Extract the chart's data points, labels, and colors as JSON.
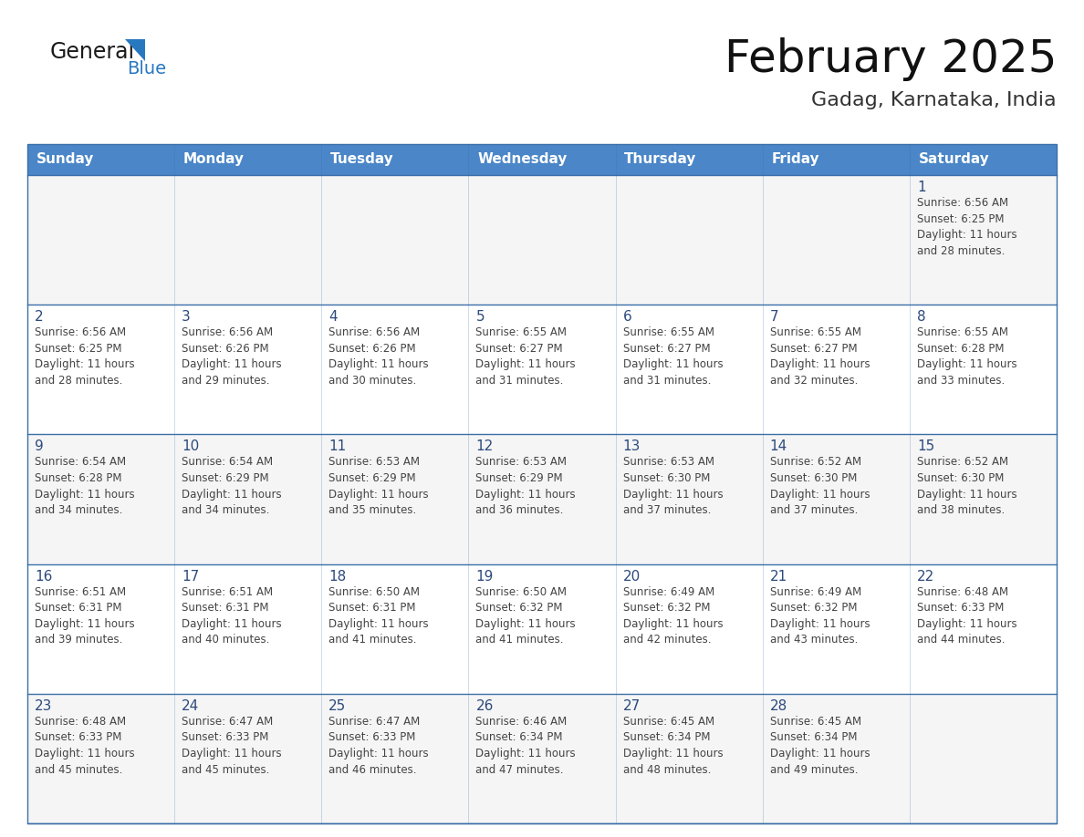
{
  "title": "February 2025",
  "subtitle": "Gadag, Karnataka, India",
  "header_color": "#4a86c8",
  "header_text_color": "#ffffff",
  "cell_bg_color": "#ffffff",
  "cell_alt_bg": "#f5f5f5",
  "border_color": "#3a6fa8",
  "day_number_color": "#2c4a7c",
  "info_text_color": "#444444",
  "days_of_week": [
    "Sunday",
    "Monday",
    "Tuesday",
    "Wednesday",
    "Thursday",
    "Friday",
    "Saturday"
  ],
  "weeks": [
    [
      {
        "day": "",
        "info": ""
      },
      {
        "day": "",
        "info": ""
      },
      {
        "day": "",
        "info": ""
      },
      {
        "day": "",
        "info": ""
      },
      {
        "day": "",
        "info": ""
      },
      {
        "day": "",
        "info": ""
      },
      {
        "day": "1",
        "info": "Sunrise: 6:56 AM\nSunset: 6:25 PM\nDaylight: 11 hours\nand 28 minutes."
      }
    ],
    [
      {
        "day": "2",
        "info": "Sunrise: 6:56 AM\nSunset: 6:25 PM\nDaylight: 11 hours\nand 28 minutes."
      },
      {
        "day": "3",
        "info": "Sunrise: 6:56 AM\nSunset: 6:26 PM\nDaylight: 11 hours\nand 29 minutes."
      },
      {
        "day": "4",
        "info": "Sunrise: 6:56 AM\nSunset: 6:26 PM\nDaylight: 11 hours\nand 30 minutes."
      },
      {
        "day": "5",
        "info": "Sunrise: 6:55 AM\nSunset: 6:27 PM\nDaylight: 11 hours\nand 31 minutes."
      },
      {
        "day": "6",
        "info": "Sunrise: 6:55 AM\nSunset: 6:27 PM\nDaylight: 11 hours\nand 31 minutes."
      },
      {
        "day": "7",
        "info": "Sunrise: 6:55 AM\nSunset: 6:27 PM\nDaylight: 11 hours\nand 32 minutes."
      },
      {
        "day": "8",
        "info": "Sunrise: 6:55 AM\nSunset: 6:28 PM\nDaylight: 11 hours\nand 33 minutes."
      }
    ],
    [
      {
        "day": "9",
        "info": "Sunrise: 6:54 AM\nSunset: 6:28 PM\nDaylight: 11 hours\nand 34 minutes."
      },
      {
        "day": "10",
        "info": "Sunrise: 6:54 AM\nSunset: 6:29 PM\nDaylight: 11 hours\nand 34 minutes."
      },
      {
        "day": "11",
        "info": "Sunrise: 6:53 AM\nSunset: 6:29 PM\nDaylight: 11 hours\nand 35 minutes."
      },
      {
        "day": "12",
        "info": "Sunrise: 6:53 AM\nSunset: 6:29 PM\nDaylight: 11 hours\nand 36 minutes."
      },
      {
        "day": "13",
        "info": "Sunrise: 6:53 AM\nSunset: 6:30 PM\nDaylight: 11 hours\nand 37 minutes."
      },
      {
        "day": "14",
        "info": "Sunrise: 6:52 AM\nSunset: 6:30 PM\nDaylight: 11 hours\nand 37 minutes."
      },
      {
        "day": "15",
        "info": "Sunrise: 6:52 AM\nSunset: 6:30 PM\nDaylight: 11 hours\nand 38 minutes."
      }
    ],
    [
      {
        "day": "16",
        "info": "Sunrise: 6:51 AM\nSunset: 6:31 PM\nDaylight: 11 hours\nand 39 minutes."
      },
      {
        "day": "17",
        "info": "Sunrise: 6:51 AM\nSunset: 6:31 PM\nDaylight: 11 hours\nand 40 minutes."
      },
      {
        "day": "18",
        "info": "Sunrise: 6:50 AM\nSunset: 6:31 PM\nDaylight: 11 hours\nand 41 minutes."
      },
      {
        "day": "19",
        "info": "Sunrise: 6:50 AM\nSunset: 6:32 PM\nDaylight: 11 hours\nand 41 minutes."
      },
      {
        "day": "20",
        "info": "Sunrise: 6:49 AM\nSunset: 6:32 PM\nDaylight: 11 hours\nand 42 minutes."
      },
      {
        "day": "21",
        "info": "Sunrise: 6:49 AM\nSunset: 6:32 PM\nDaylight: 11 hours\nand 43 minutes."
      },
      {
        "day": "22",
        "info": "Sunrise: 6:48 AM\nSunset: 6:33 PM\nDaylight: 11 hours\nand 44 minutes."
      }
    ],
    [
      {
        "day": "23",
        "info": "Sunrise: 6:48 AM\nSunset: 6:33 PM\nDaylight: 11 hours\nand 45 minutes."
      },
      {
        "day": "24",
        "info": "Sunrise: 6:47 AM\nSunset: 6:33 PM\nDaylight: 11 hours\nand 45 minutes."
      },
      {
        "day": "25",
        "info": "Sunrise: 6:47 AM\nSunset: 6:33 PM\nDaylight: 11 hours\nand 46 minutes."
      },
      {
        "day": "26",
        "info": "Sunrise: 6:46 AM\nSunset: 6:34 PM\nDaylight: 11 hours\nand 47 minutes."
      },
      {
        "day": "27",
        "info": "Sunrise: 6:45 AM\nSunset: 6:34 PM\nDaylight: 11 hours\nand 48 minutes."
      },
      {
        "day": "28",
        "info": "Sunrise: 6:45 AM\nSunset: 6:34 PM\nDaylight: 11 hours\nand 49 minutes."
      },
      {
        "day": "",
        "info": ""
      }
    ]
  ],
  "logo_text1": "General",
  "logo_text2": "Blue",
  "logo_color1": "#1a1a1a",
  "logo_color2": "#2878c0",
  "title_fontsize": 36,
  "subtitle_fontsize": 16,
  "header_fontsize": 11,
  "day_num_fontsize": 11,
  "info_fontsize": 8.5
}
